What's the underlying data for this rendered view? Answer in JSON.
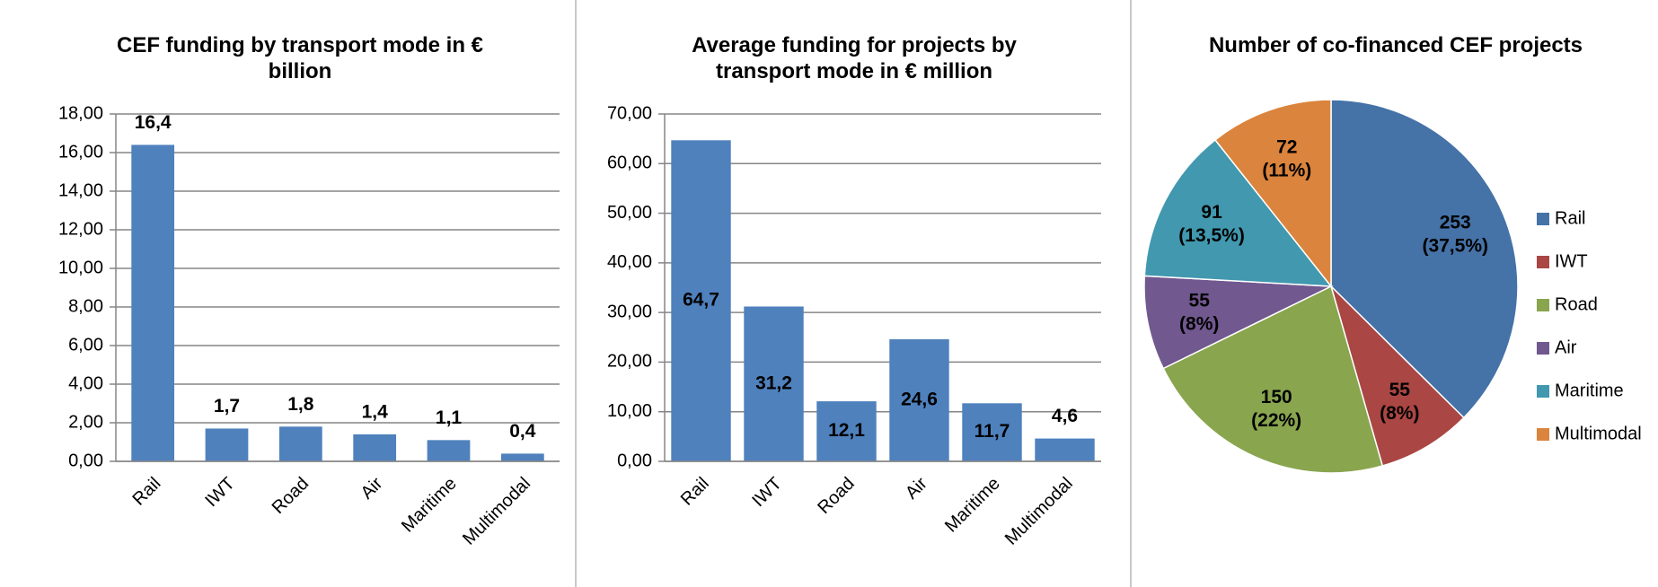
{
  "chart_data": [
    {
      "type": "bar",
      "title": "CEF funding by transport mode in € billion",
      "categories": [
        "Rail",
        "IWT",
        "Road",
        "Air",
        "Maritime",
        "Multimodal"
      ],
      "values": [
        16.4,
        1.7,
        1.8,
        1.4,
        1.1,
        0.4
      ],
      "value_labels": [
        "16,4",
        "1,7",
        "1,8",
        "1,4",
        "1,1",
        "0,4"
      ],
      "color": "#4f81bd",
      "label_position": "above",
      "ylim": [
        0,
        18
      ],
      "yticks": [
        {
          "value": 0,
          "label": "0,00"
        },
        {
          "value": 2,
          "label": "2,00"
        },
        {
          "value": 4,
          "label": "4,00"
        },
        {
          "value": 6,
          "label": "6,00"
        },
        {
          "value": 8,
          "label": "8,00"
        },
        {
          "value": 10,
          "label": "10,00"
        },
        {
          "value": 12,
          "label": "12,00"
        },
        {
          "value": 14,
          "label": "14,00"
        },
        {
          "value": 16,
          "label": "16,00"
        },
        {
          "value": 18,
          "label": "18,00"
        }
      ],
      "grid": true
    },
    {
      "type": "bar",
      "title": "Average funding for projects by transport mode in € million",
      "categories": [
        "Rail",
        "IWT",
        "Road",
        "Air",
        "Maritime",
        "Multimodal"
      ],
      "values": [
        64.7,
        31.2,
        12.1,
        24.6,
        11.7,
        4.6
      ],
      "value_labels": [
        "64,7",
        "31,2",
        "12,1",
        "24,6",
        "11,7",
        "4,6"
      ],
      "color": "#4f81bd",
      "label_position": "inside",
      "ylim": [
        0,
        70
      ],
      "yticks": [
        {
          "value": 0,
          "label": "0,00"
        },
        {
          "value": 10,
          "label": "10,00"
        },
        {
          "value": 20,
          "label": "20,00"
        },
        {
          "value": 30,
          "label": "30,00"
        },
        {
          "value": 40,
          "label": "40,00"
        },
        {
          "value": 50,
          "label": "50,00"
        },
        {
          "value": 60,
          "label": "60,00"
        },
        {
          "value": 70,
          "label": "70,00"
        }
      ],
      "grid": true
    },
    {
      "type": "pie",
      "title": "Number of co-financed CEF projects",
      "categories": [
        "Rail",
        "IWT",
        "Road",
        "Air",
        "Maritime",
        "Multimodal"
      ],
      "values": [
        253,
        55,
        150,
        55,
        91,
        72
      ],
      "value_labels": [
        "253 (37,5%)",
        "55 (8%)",
        "150 (22%)",
        "55 (8%)",
        "91 (13,5%)",
        "72 (11%)"
      ],
      "colors": [
        "#4572a7",
        "#aa4643",
        "#89a54e",
        "#71588f",
        "#4198af",
        "#db843d"
      ],
      "legend": "right"
    }
  ]
}
